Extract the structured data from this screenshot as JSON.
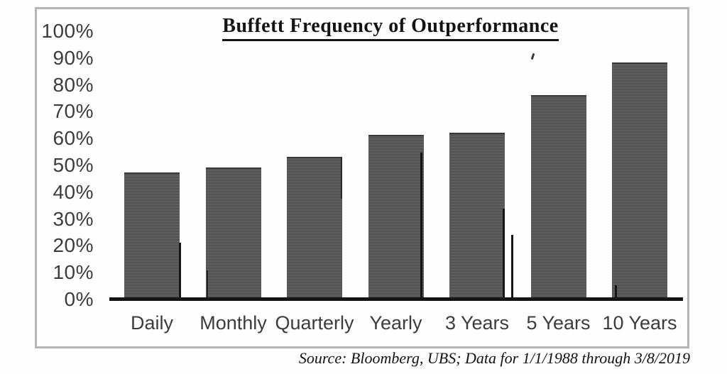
{
  "chart": {
    "bar_color": "#585858",
    "frame_border_color": "#b5b5b5",
    "axis_color": "#151515",
    "text_color": "#3c3c3c",
    "title_color": "#141414"
  },
  "chart_data": {
    "type": "bar",
    "title": "Buffett Frequency of Outperformance",
    "categories": [
      "Daily",
      "Monthly",
      "Quarterly",
      "Yearly",
      "3 Years",
      "5 Years",
      "10 Years"
    ],
    "values": [
      47,
      49,
      53,
      61,
      62,
      76,
      88
    ],
    "unit": "%",
    "xlabel": "",
    "ylabel": "",
    "ylim": [
      0,
      100
    ],
    "ytick_step": 10,
    "ytick_labels": [
      "100%",
      "90%",
      "80%",
      "70%",
      "60%",
      "50%",
      "40%",
      "30%",
      "20%",
      "10%",
      "0%"
    ],
    "grid": false,
    "legend": "none",
    "source": "Source: Bloomberg, UBS; Data for 1/1/1988 through 3/8/2019"
  }
}
